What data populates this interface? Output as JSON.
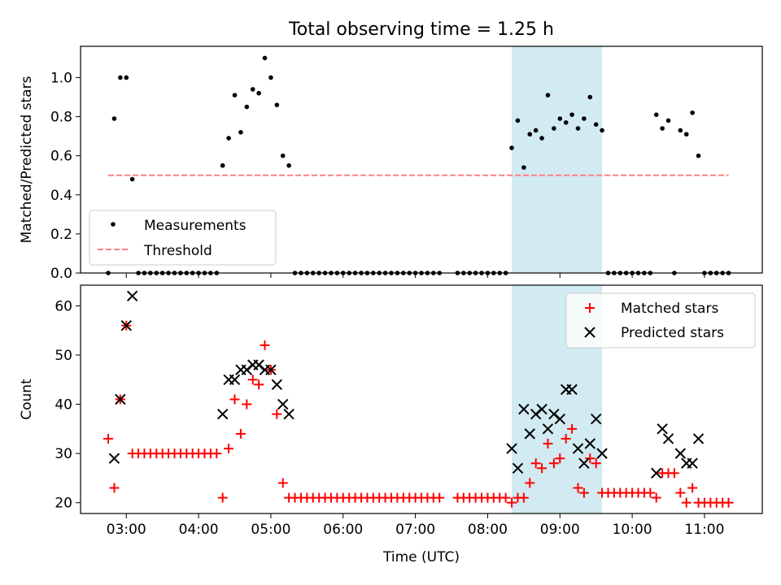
{
  "figure": {
    "title": "Total observing time = 1.25 h",
    "xlabel": "Time (UTC)",
    "x_ticks": [
      "03:00",
      "04:00",
      "05:00",
      "06:00",
      "07:00",
      "08:00",
      "09:00",
      "10:00",
      "11:00"
    ],
    "highlight_color": "#add8e6"
  },
  "chart_data": [
    {
      "type": "scatter",
      "ylabel": "Matched/Predicted stars",
      "xlim": [
        "02:22",
        "11:48"
      ],
      "ylim": [
        0,
        1.16
      ],
      "yticks": [
        0.0,
        0.2,
        0.4,
        0.6,
        0.8,
        1.0
      ],
      "ytick_labels": [
        "0.0",
        "0.2",
        "0.4",
        "0.6",
        "0.8",
        "1.0"
      ],
      "legend": {
        "placement": "lower-left",
        "entries": [
          "Measurements",
          "Threshold"
        ]
      },
      "highlight_range": [
        "08:20",
        "09:35"
      ],
      "series": [
        {
          "name": "Measurements",
          "style": "dot",
          "color": "#000000",
          "points": [
            [
              "02:45",
              0.0
            ],
            [
              "02:50",
              0.79
            ],
            [
              "02:55",
              1.0
            ],
            [
              "03:00",
              1.0
            ],
            [
              "03:05",
              0.48
            ],
            [
              "03:10",
              0.0
            ],
            [
              "03:15",
              0.0
            ],
            [
              "03:20",
              0.0
            ],
            [
              "03:25",
              0.0
            ],
            [
              "03:30",
              0.0
            ],
            [
              "03:35",
              0.0
            ],
            [
              "03:40",
              0.0
            ],
            [
              "03:45",
              0.0
            ],
            [
              "03:50",
              0.0
            ],
            [
              "03:55",
              0.0
            ],
            [
              "04:00",
              0.0
            ],
            [
              "04:05",
              0.0
            ],
            [
              "04:10",
              0.0
            ],
            [
              "04:15",
              0.0
            ],
            [
              "04:20",
              0.55
            ],
            [
              "04:25",
              0.69
            ],
            [
              "04:30",
              0.91
            ],
            [
              "04:35",
              0.72
            ],
            [
              "04:40",
              0.85
            ],
            [
              "04:45",
              0.94
            ],
            [
              "04:50",
              0.92
            ],
            [
              "04:55",
              1.1
            ],
            [
              "05:00",
              1.0
            ],
            [
              "05:05",
              0.86
            ],
            [
              "05:10",
              0.6
            ],
            [
              "05:15",
              0.55
            ],
            [
              "05:20",
              0.0
            ],
            [
              "05:25",
              0.0
            ],
            [
              "05:30",
              0.0
            ],
            [
              "05:35",
              0.0
            ],
            [
              "05:40",
              0.0
            ],
            [
              "05:45",
              0.0
            ],
            [
              "05:50",
              0.0
            ],
            [
              "05:55",
              0.0
            ],
            [
              "06:00",
              0.0
            ],
            [
              "06:05",
              0.0
            ],
            [
              "06:10",
              0.0
            ],
            [
              "06:15",
              0.0
            ],
            [
              "06:20",
              0.0
            ],
            [
              "06:25",
              0.0
            ],
            [
              "06:30",
              0.0
            ],
            [
              "06:35",
              0.0
            ],
            [
              "06:40",
              0.0
            ],
            [
              "06:45",
              0.0
            ],
            [
              "06:50",
              0.0
            ],
            [
              "06:55",
              0.0
            ],
            [
              "07:00",
              0.0
            ],
            [
              "07:05",
              0.0
            ],
            [
              "07:10",
              0.0
            ],
            [
              "07:15",
              0.0
            ],
            [
              "07:20",
              0.0
            ],
            [
              "07:35",
              0.0
            ],
            [
              "07:40",
              0.0
            ],
            [
              "07:45",
              0.0
            ],
            [
              "07:50",
              0.0
            ],
            [
              "07:55",
              0.0
            ],
            [
              "08:00",
              0.0
            ],
            [
              "08:05",
              0.0
            ],
            [
              "08:10",
              0.0
            ],
            [
              "08:15",
              0.0
            ],
            [
              "08:20",
              0.64
            ],
            [
              "08:25",
              0.78
            ],
            [
              "08:30",
              0.54
            ],
            [
              "08:35",
              0.71
            ],
            [
              "08:40",
              0.73
            ],
            [
              "08:45",
              0.69
            ],
            [
              "08:50",
              0.91
            ],
            [
              "08:55",
              0.74
            ],
            [
              "09:00",
              0.79
            ],
            [
              "09:05",
              0.77
            ],
            [
              "09:10",
              0.81
            ],
            [
              "09:15",
              0.74
            ],
            [
              "09:20",
              0.79
            ],
            [
              "09:25",
              0.9
            ],
            [
              "09:30",
              0.76
            ],
            [
              "09:35",
              0.73
            ],
            [
              "09:40",
              0.0
            ],
            [
              "09:45",
              0.0
            ],
            [
              "09:50",
              0.0
            ],
            [
              "09:55",
              0.0
            ],
            [
              "10:00",
              0.0
            ],
            [
              "10:05",
              0.0
            ],
            [
              "10:10",
              0.0
            ],
            [
              "10:15",
              0.0
            ],
            [
              "10:20",
              0.81
            ],
            [
              "10:25",
              0.74
            ],
            [
              "10:30",
              0.78
            ],
            [
              "10:35",
              0.0
            ],
            [
              "10:40",
              0.73
            ],
            [
              "10:45",
              0.71
            ],
            [
              "10:50",
              0.82
            ],
            [
              "10:55",
              0.6
            ],
            [
              "11:00",
              0.0
            ],
            [
              "11:05",
              0.0
            ],
            [
              "11:10",
              0.0
            ],
            [
              "11:15",
              0.0
            ],
            [
              "11:20",
              0.0
            ]
          ]
        },
        {
          "name": "Threshold",
          "style": "dashed-line",
          "color": "#ff7f7f",
          "points": [
            [
              "02:45",
              0.5
            ],
            [
              "11:20",
              0.5
            ]
          ]
        }
      ]
    },
    {
      "type": "scatter",
      "ylabel": "Count",
      "xlim": [
        "02:22",
        "11:48"
      ],
      "ylim": [
        17.8,
        64.2
      ],
      "yticks": [
        20,
        30,
        40,
        50,
        60
      ],
      "ytick_labels": [
        "20",
        "30",
        "40",
        "50",
        "60"
      ],
      "legend": {
        "placement": "upper-right",
        "entries": [
          "Matched stars",
          "Predicted stars"
        ]
      },
      "highlight_range": [
        "08:20",
        "09:35"
      ],
      "series": [
        {
          "name": "Matched stars",
          "marker": "plus",
          "color": "#ff0000",
          "points": [
            [
              "02:45",
              33
            ],
            [
              "02:50",
              23
            ],
            [
              "02:55",
              41
            ],
            [
              "03:00",
              56
            ],
            [
              "03:05",
              30
            ],
            [
              "03:10",
              30
            ],
            [
              "03:15",
              30
            ],
            [
              "03:20",
              30
            ],
            [
              "03:25",
              30
            ],
            [
              "03:30",
              30
            ],
            [
              "03:35",
              30
            ],
            [
              "03:40",
              30
            ],
            [
              "03:45",
              30
            ],
            [
              "03:50",
              30
            ],
            [
              "03:55",
              30
            ],
            [
              "04:00",
              30
            ],
            [
              "04:05",
              30
            ],
            [
              "04:10",
              30
            ],
            [
              "04:15",
              30
            ],
            [
              "04:20",
              21
            ],
            [
              "04:25",
              31
            ],
            [
              "04:30",
              41
            ],
            [
              "04:35",
              34
            ],
            [
              "04:40",
              40
            ],
            [
              "04:45",
              45
            ],
            [
              "04:50",
              44
            ],
            [
              "04:55",
              52
            ],
            [
              "05:00",
              47
            ],
            [
              "05:05",
              38
            ],
            [
              "05:10",
              24
            ],
            [
              "05:15",
              21
            ],
            [
              "05:20",
              21
            ],
            [
              "05:25",
              21
            ],
            [
              "05:30",
              21
            ],
            [
              "05:35",
              21
            ],
            [
              "05:40",
              21
            ],
            [
              "05:45",
              21
            ],
            [
              "05:50",
              21
            ],
            [
              "05:55",
              21
            ],
            [
              "06:00",
              21
            ],
            [
              "06:05",
              21
            ],
            [
              "06:10",
              21
            ],
            [
              "06:15",
              21
            ],
            [
              "06:20",
              21
            ],
            [
              "06:25",
              21
            ],
            [
              "06:30",
              21
            ],
            [
              "06:35",
              21
            ],
            [
              "06:40",
              21
            ],
            [
              "06:45",
              21
            ],
            [
              "06:50",
              21
            ],
            [
              "06:55",
              21
            ],
            [
              "07:00",
              21
            ],
            [
              "07:05",
              21
            ],
            [
              "07:10",
              21
            ],
            [
              "07:15",
              21
            ],
            [
              "07:20",
              21
            ],
            [
              "07:35",
              21
            ],
            [
              "07:40",
              21
            ],
            [
              "07:45",
              21
            ],
            [
              "07:50",
              21
            ],
            [
              "07:55",
              21
            ],
            [
              "08:00",
              21
            ],
            [
              "08:05",
              21
            ],
            [
              "08:10",
              21
            ],
            [
              "08:15",
              21
            ],
            [
              "08:20",
              20
            ],
            [
              "08:25",
              21
            ],
            [
              "08:30",
              21
            ],
            [
              "08:35",
              24
            ],
            [
              "08:40",
              28
            ],
            [
              "08:45",
              27
            ],
            [
              "08:50",
              32
            ],
            [
              "08:55",
              28
            ],
            [
              "09:00",
              29
            ],
            [
              "09:05",
              33
            ],
            [
              "09:10",
              35
            ],
            [
              "09:15",
              23
            ],
            [
              "09:20",
              22
            ],
            [
              "09:25",
              29
            ],
            [
              "09:30",
              28
            ],
            [
              "09:35",
              22
            ],
            [
              "09:40",
              22
            ],
            [
              "09:45",
              22
            ],
            [
              "09:50",
              22
            ],
            [
              "09:55",
              22
            ],
            [
              "10:00",
              22
            ],
            [
              "10:05",
              22
            ],
            [
              "10:10",
              22
            ],
            [
              "10:15",
              22
            ],
            [
              "10:20",
              21
            ],
            [
              "10:25",
              26
            ],
            [
              "10:30",
              26
            ],
            [
              "10:35",
              26
            ],
            [
              "10:40",
              22
            ],
            [
              "10:45",
              20
            ],
            [
              "10:50",
              23
            ],
            [
              "10:55",
              20
            ],
            [
              "11:00",
              20
            ],
            [
              "11:05",
              20
            ],
            [
              "11:10",
              20
            ],
            [
              "11:15",
              20
            ],
            [
              "11:20",
              20
            ]
          ]
        },
        {
          "name": "Predicted stars",
          "marker": "x",
          "color": "#000000",
          "points": [
            [
              "02:50",
              29
            ],
            [
              "02:55",
              41
            ],
            [
              "03:00",
              56
            ],
            [
              "03:05",
              62
            ],
            [
              "04:20",
              38
            ],
            [
              "04:25",
              45
            ],
            [
              "04:30",
              45
            ],
            [
              "04:35",
              47
            ],
            [
              "04:40",
              47
            ],
            [
              "04:45",
              48
            ],
            [
              "04:50",
              48
            ],
            [
              "04:55",
              47
            ],
            [
              "05:00",
              47
            ],
            [
              "05:05",
              44
            ],
            [
              "05:10",
              40
            ],
            [
              "05:15",
              38
            ],
            [
              "08:20",
              31
            ],
            [
              "08:25",
              27
            ],
            [
              "08:30",
              39
            ],
            [
              "08:35",
              34
            ],
            [
              "08:40",
              38
            ],
            [
              "08:45",
              39
            ],
            [
              "08:50",
              35
            ],
            [
              "08:55",
              38
            ],
            [
              "09:00",
              37
            ],
            [
              "09:05",
              43
            ],
            [
              "09:10",
              43
            ],
            [
              "09:15",
              31
            ],
            [
              "09:20",
              28
            ],
            [
              "09:25",
              32
            ],
            [
              "09:30",
              37
            ],
            [
              "09:35",
              30
            ],
            [
              "10:20",
              26
            ],
            [
              "10:25",
              35
            ],
            [
              "10:30",
              33
            ],
            [
              "10:40",
              30
            ],
            [
              "10:45",
              28
            ],
            [
              "10:50",
              28
            ],
            [
              "10:55",
              33
            ]
          ]
        }
      ]
    }
  ]
}
